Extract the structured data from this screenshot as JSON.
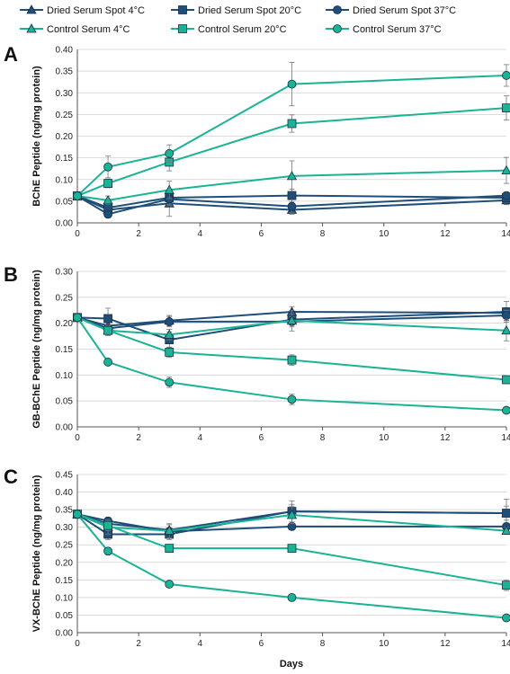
{
  "colors": {
    "dried": "#1f4e79",
    "control": "#1ab394",
    "grid": "#d0d0d0",
    "axis": "#555555"
  },
  "legend": [
    {
      "name": "Dried Serum Spot 4°C",
      "group": "dried",
      "marker": "triangle"
    },
    {
      "name": "Dried Serum Spot 20°C",
      "group": "dried",
      "marker": "square"
    },
    {
      "name": "Dried Serum Spot 37°C",
      "group": "dried",
      "marker": "circle"
    },
    {
      "name": "Control Serum 4°C",
      "group": "control",
      "marker": "triangle"
    },
    {
      "name": "Control Serum 20°C",
      "group": "control",
      "marker": "square"
    },
    {
      "name": "Control Serum 37°C",
      "group": "control",
      "marker": "circle"
    }
  ],
  "xlabel": "Days",
  "chart_data": [
    {
      "type": "line",
      "panel": "A",
      "ylabel": "BChE Peptide (ng/mg protein)",
      "x": [
        0,
        1,
        3,
        7,
        14
      ],
      "xlim": [
        0,
        14
      ],
      "xticks": [
        "0",
        "2",
        "4",
        "6",
        "8",
        "10",
        "12",
        "14"
      ],
      "ylim": [
        0,
        0.4
      ],
      "yticks": [
        "0.00",
        "0.05",
        "0.10",
        "0.15",
        "0.20",
        "0.25",
        "0.30",
        "0.35",
        "0.40"
      ],
      "series": [
        {
          "name": "Dried Serum Spot 4°C",
          "values": [
            0.062,
            0.03,
            0.045,
            0.03,
            0.052
          ],
          "err": [
            0.005,
            0.01,
            0.03,
            0.01,
            0.01
          ]
        },
        {
          "name": "Dried Serum Spot 20°C",
          "values": [
            0.062,
            0.035,
            0.058,
            0.063,
            0.058
          ],
          "err": [
            0.005,
            0.01,
            0.015,
            0.015,
            0.01
          ]
        },
        {
          "name": "Dried Serum Spot 37°C",
          "values": [
            0.062,
            0.02,
            0.055,
            0.038,
            0.063
          ],
          "err": [
            0.005,
            0.008,
            0.015,
            0.015,
            0.008
          ]
        },
        {
          "name": "Control Serum 4°C",
          "values": [
            0.062,
            0.052,
            0.076,
            0.108,
            0.121
          ],
          "err": [
            0.005,
            0.01,
            0.02,
            0.035,
            0.03
          ]
        },
        {
          "name": "Control Serum 20°C",
          "values": [
            0.062,
            0.091,
            0.14,
            0.229,
            0.265
          ],
          "err": [
            0.005,
            0.01,
            0.02,
            0.02,
            0.028
          ]
        },
        {
          "name": "Control Serum 37°C",
          "values": [
            0.062,
            0.129,
            0.16,
            0.32,
            0.34
          ],
          "err": [
            0.005,
            0.025,
            0.02,
            0.05,
            0.025
          ]
        }
      ]
    },
    {
      "type": "line",
      "panel": "B",
      "ylabel": "GB-BChE Peptide (ng/mg protein)",
      "x": [
        0,
        1,
        3,
        7,
        14
      ],
      "xlim": [
        0,
        14
      ],
      "xticks": [
        "0",
        "2",
        "4",
        "6",
        "8",
        "10",
        "12",
        "14"
      ],
      "ylim": [
        0,
        0.3
      ],
      "yticks": [
        "0.00",
        "0.05",
        "0.10",
        "0.15",
        "0.20",
        "0.25",
        "0.30"
      ],
      "series": [
        {
          "name": "Dried Serum Spot 4°C",
          "values": [
            0.211,
            0.195,
            0.205,
            0.222,
            0.22
          ],
          "err": [
            0.005,
            0.01,
            0.01,
            0.01,
            0.01
          ]
        },
        {
          "name": "Dried Serum Spot 20°C",
          "values": [
            0.211,
            0.209,
            0.168,
            0.207,
            0.222
          ],
          "err": [
            0.005,
            0.02,
            0.015,
            0.01,
            0.02
          ]
        },
        {
          "name": "Dried Serum Spot 37°C",
          "values": [
            0.211,
            0.19,
            0.203,
            0.203,
            0.215
          ],
          "err": [
            0.005,
            0.008,
            0.01,
            0.01,
            0.01
          ]
        },
        {
          "name": "Control Serum 4°C",
          "values": [
            0.211,
            0.186,
            0.178,
            0.205,
            0.186
          ],
          "err": [
            0.005,
            0.01,
            0.01,
            0.02,
            0.02
          ]
        },
        {
          "name": "Control Serum 20°C",
          "values": [
            0.211,
            0.186,
            0.144,
            0.129,
            0.091
          ],
          "err": [
            0.005,
            0.008,
            0.01,
            0.01,
            0.005
          ]
        },
        {
          "name": "Control Serum 37°C",
          "values": [
            0.211,
            0.125,
            0.086,
            0.053,
            0.032
          ],
          "err": [
            0.005,
            0.005,
            0.01,
            0.01,
            0.004
          ]
        }
      ]
    },
    {
      "type": "line",
      "panel": "C",
      "ylabel": "VX-BChE Peptide (ng/mg protein)",
      "x": [
        0,
        1,
        3,
        7,
        14
      ],
      "xlim": [
        0,
        14
      ],
      "xticks": [
        "0",
        "2",
        "4",
        "6",
        "8",
        "10",
        "12",
        "14"
      ],
      "ylim": [
        0,
        0.45
      ],
      "yticks": [
        "0.00",
        "0.05",
        "0.10",
        "0.15",
        "0.20",
        "0.25",
        "0.30",
        "0.35",
        "0.40",
        "0.45"
      ],
      "series": [
        {
          "name": "Dried Serum Spot 4°C",
          "values": [
            0.337,
            0.31,
            0.292,
            0.345,
            0.34
          ],
          "err": [
            0.005,
            0.015,
            0.015,
            0.03,
            0.02
          ]
        },
        {
          "name": "Dried Serum Spot 20°C",
          "values": [
            0.337,
            0.28,
            0.28,
            0.345,
            0.34
          ],
          "err": [
            0.005,
            0.015,
            0.015,
            0.02,
            0.04
          ]
        },
        {
          "name": "Dried Serum Spot 37°C",
          "values": [
            0.337,
            0.318,
            0.288,
            0.302,
            0.302
          ],
          "err": [
            0.005,
            0.01,
            0.01,
            0.01,
            0.01
          ]
        },
        {
          "name": "Control Serum 4°C",
          "values": [
            0.337,
            0.3,
            0.29,
            0.335,
            0.29
          ],
          "err": [
            0.005,
            0.02,
            0.02,
            0.025,
            0.01
          ]
        },
        {
          "name": "Control Serum 20°C",
          "values": [
            0.337,
            0.305,
            0.24,
            0.24,
            0.135
          ],
          "err": [
            0.005,
            0.015,
            0.008,
            0.005,
            0.015
          ]
        },
        {
          "name": "Control Serum 37°C",
          "values": [
            0.337,
            0.232,
            0.138,
            0.1,
            0.042
          ],
          "err": [
            0.005,
            0.01,
            0.005,
            0.008,
            0.004
          ]
        }
      ]
    }
  ]
}
